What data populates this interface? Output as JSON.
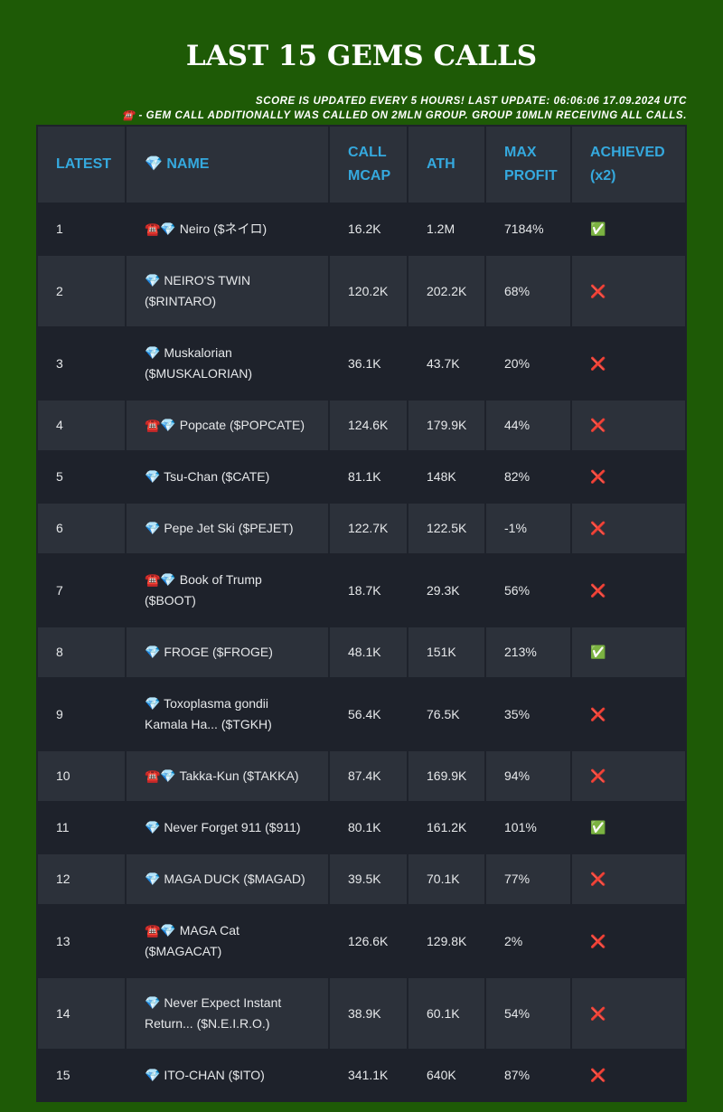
{
  "header": {
    "title": "LAST 15 GEMS CALLS",
    "notes": [
      "SCORE IS UPDATED EVERY 5 HOURS! LAST UPDATE: 06:06:06 17.09.2024 UTC",
      "☎️ - GEM CALL ADDITIONALLY WAS CALLED ON 2MLN GROUP. GROUP 10MLN RECEIVING ALL CALLS."
    ]
  },
  "table": {
    "columns": [
      "LATEST",
      "💎 NAME",
      "CALL MCAP",
      "ATH",
      "MAX PROFIT",
      "ACHIEVED (x2)"
    ],
    "rows": [
      [
        "1",
        "☎️💎 Neiro ($ネイロ)",
        "16.2K",
        "1.2M",
        "7184%",
        "✅"
      ],
      [
        "2",
        "💎 NEIRO'S TWIN ($RINTARO)",
        "120.2K",
        "202.2K",
        "68%",
        "❌"
      ],
      [
        "3",
        "💎 Muskalorian ($MUSKALORIAN)",
        "36.1K",
        "43.7K",
        "20%",
        "❌"
      ],
      [
        "4",
        "☎️💎 Popcate ($POPCATE)",
        "124.6K",
        "179.9K",
        "44%",
        "❌"
      ],
      [
        "5",
        "💎 Tsu-Chan ($CATE)",
        "81.1K",
        "148K",
        "82%",
        "❌"
      ],
      [
        "6",
        "💎 Pepe Jet Ski ($PEJET)",
        "122.7K",
        "122.5K",
        "-1%",
        "❌"
      ],
      [
        "7",
        "☎️💎 Book of Trump ($BOOT)",
        "18.7K",
        "29.3K",
        "56%",
        "❌"
      ],
      [
        "8",
        "💎 FROGE ($FROGE)",
        "48.1K",
        "151K",
        "213%",
        "✅"
      ],
      [
        "9",
        "💎 Toxoplasma gondii Kamala Ha... ($TGKH)",
        "56.4K",
        "76.5K",
        "35%",
        "❌"
      ],
      [
        "10",
        "☎️💎 Takka-Kun ($TAKKA)",
        "87.4K",
        "169.9K",
        "94%",
        "❌"
      ],
      [
        "11",
        "💎 Never Forget 911 ($911)",
        "80.1K",
        "161.2K",
        "101%",
        "✅"
      ],
      [
        "12",
        "💎 MAGA DUCK ($MAGAD)",
        "39.5K",
        "70.1K",
        "77%",
        "❌"
      ],
      [
        "13",
        "☎️💎 MAGA Cat ($MAGACAT)",
        "126.6K",
        "129.8K",
        "2%",
        "❌"
      ],
      [
        "14",
        "💎 Never Expect Instant Return... ($N.E.I.R.O.)",
        "38.9K",
        "60.1K",
        "54%",
        "❌"
      ],
      [
        "15",
        "💎 ITO-CHAN ($ITO)",
        "341.1K",
        "640K",
        "87%",
        "❌"
      ]
    ]
  }
}
